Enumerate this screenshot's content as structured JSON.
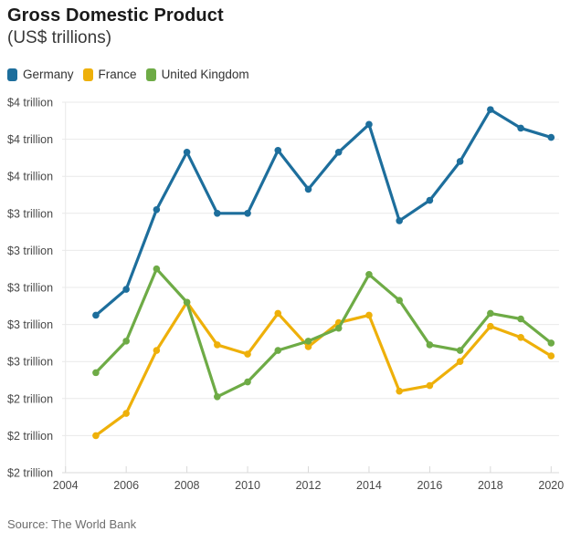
{
  "header": {
    "title": "Gross Domestic Product",
    "subtitle": "(US$ trillions)"
  },
  "legend": [
    {
      "label": "Germany",
      "color": "#1d6e9c"
    },
    {
      "label": "France",
      "color": "#eeb00a"
    },
    {
      "label": "United Kingdom",
      "color": "#6eab46"
    }
  ],
  "chart_data": {
    "type": "line",
    "title": "Gross Domestic Product",
    "subtitle": "(US$ trillions)",
    "x": [
      2005,
      2006,
      2007,
      2008,
      2009,
      2010,
      2011,
      2012,
      2013,
      2014,
      2015,
      2016,
      2017,
      2018,
      2019,
      2020
    ],
    "series": [
      {
        "name": "Germany",
        "color": "#1d6e9c",
        "values": [
          2.85,
          2.99,
          3.42,
          3.73,
          3.4,
          3.4,
          3.74,
          3.53,
          3.73,
          3.88,
          3.36,
          3.47,
          3.68,
          3.96,
          3.86,
          3.81
        ]
      },
      {
        "name": "France",
        "color": "#eeb00a",
        "values": [
          2.2,
          2.32,
          2.66,
          2.92,
          2.69,
          2.64,
          2.86,
          2.68,
          2.81,
          2.85,
          2.44,
          2.47,
          2.6,
          2.79,
          2.73,
          2.63
        ]
      },
      {
        "name": "United Kingdom",
        "color": "#6eab46",
        "values": [
          2.54,
          2.71,
          3.1,
          2.92,
          2.41,
          2.49,
          2.66,
          2.71,
          2.78,
          3.07,
          2.93,
          2.69,
          2.66,
          2.86,
          2.83,
          2.7
        ]
      }
    ],
    "ylim": [
      2.0,
      4.0
    ],
    "ytick_step": 0.2,
    "ytick_labels_top_to_bottom": [
      "$4 trillion",
      "$4 trillion",
      "$4 trillion",
      "$3 trillion",
      "$3 trillion",
      "$3 trillion",
      "$3 trillion",
      "$3 trillion",
      "$2 trillion",
      "$2 trillion",
      "$2 trillion"
    ],
    "xtick_labels": [
      "2004",
      "2006",
      "2008",
      "2010",
      "2012",
      "2014",
      "2016",
      "2018",
      "2020"
    ],
    "grid": "horizontal",
    "legend_position": "top",
    "colors": {
      "gridline": "#e9e9e9",
      "baseline": "#d9d9d9",
      "tick": "#d9d9d9"
    }
  },
  "footer": {
    "source": "Source: The World Bank"
  }
}
